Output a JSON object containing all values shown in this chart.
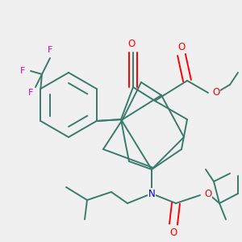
{
  "bg_color": "#f0f0f0",
  "bond_color": "#3a7a6a",
  "bond_width": 1.4,
  "atom_colors": {
    "O": "#ff0000",
    "N": "#0000cc",
    "F": "#cc00cc",
    "C": "#3a7a6a"
  },
  "figsize": [
    3.0,
    3.0
  ],
  "dpi": 100
}
